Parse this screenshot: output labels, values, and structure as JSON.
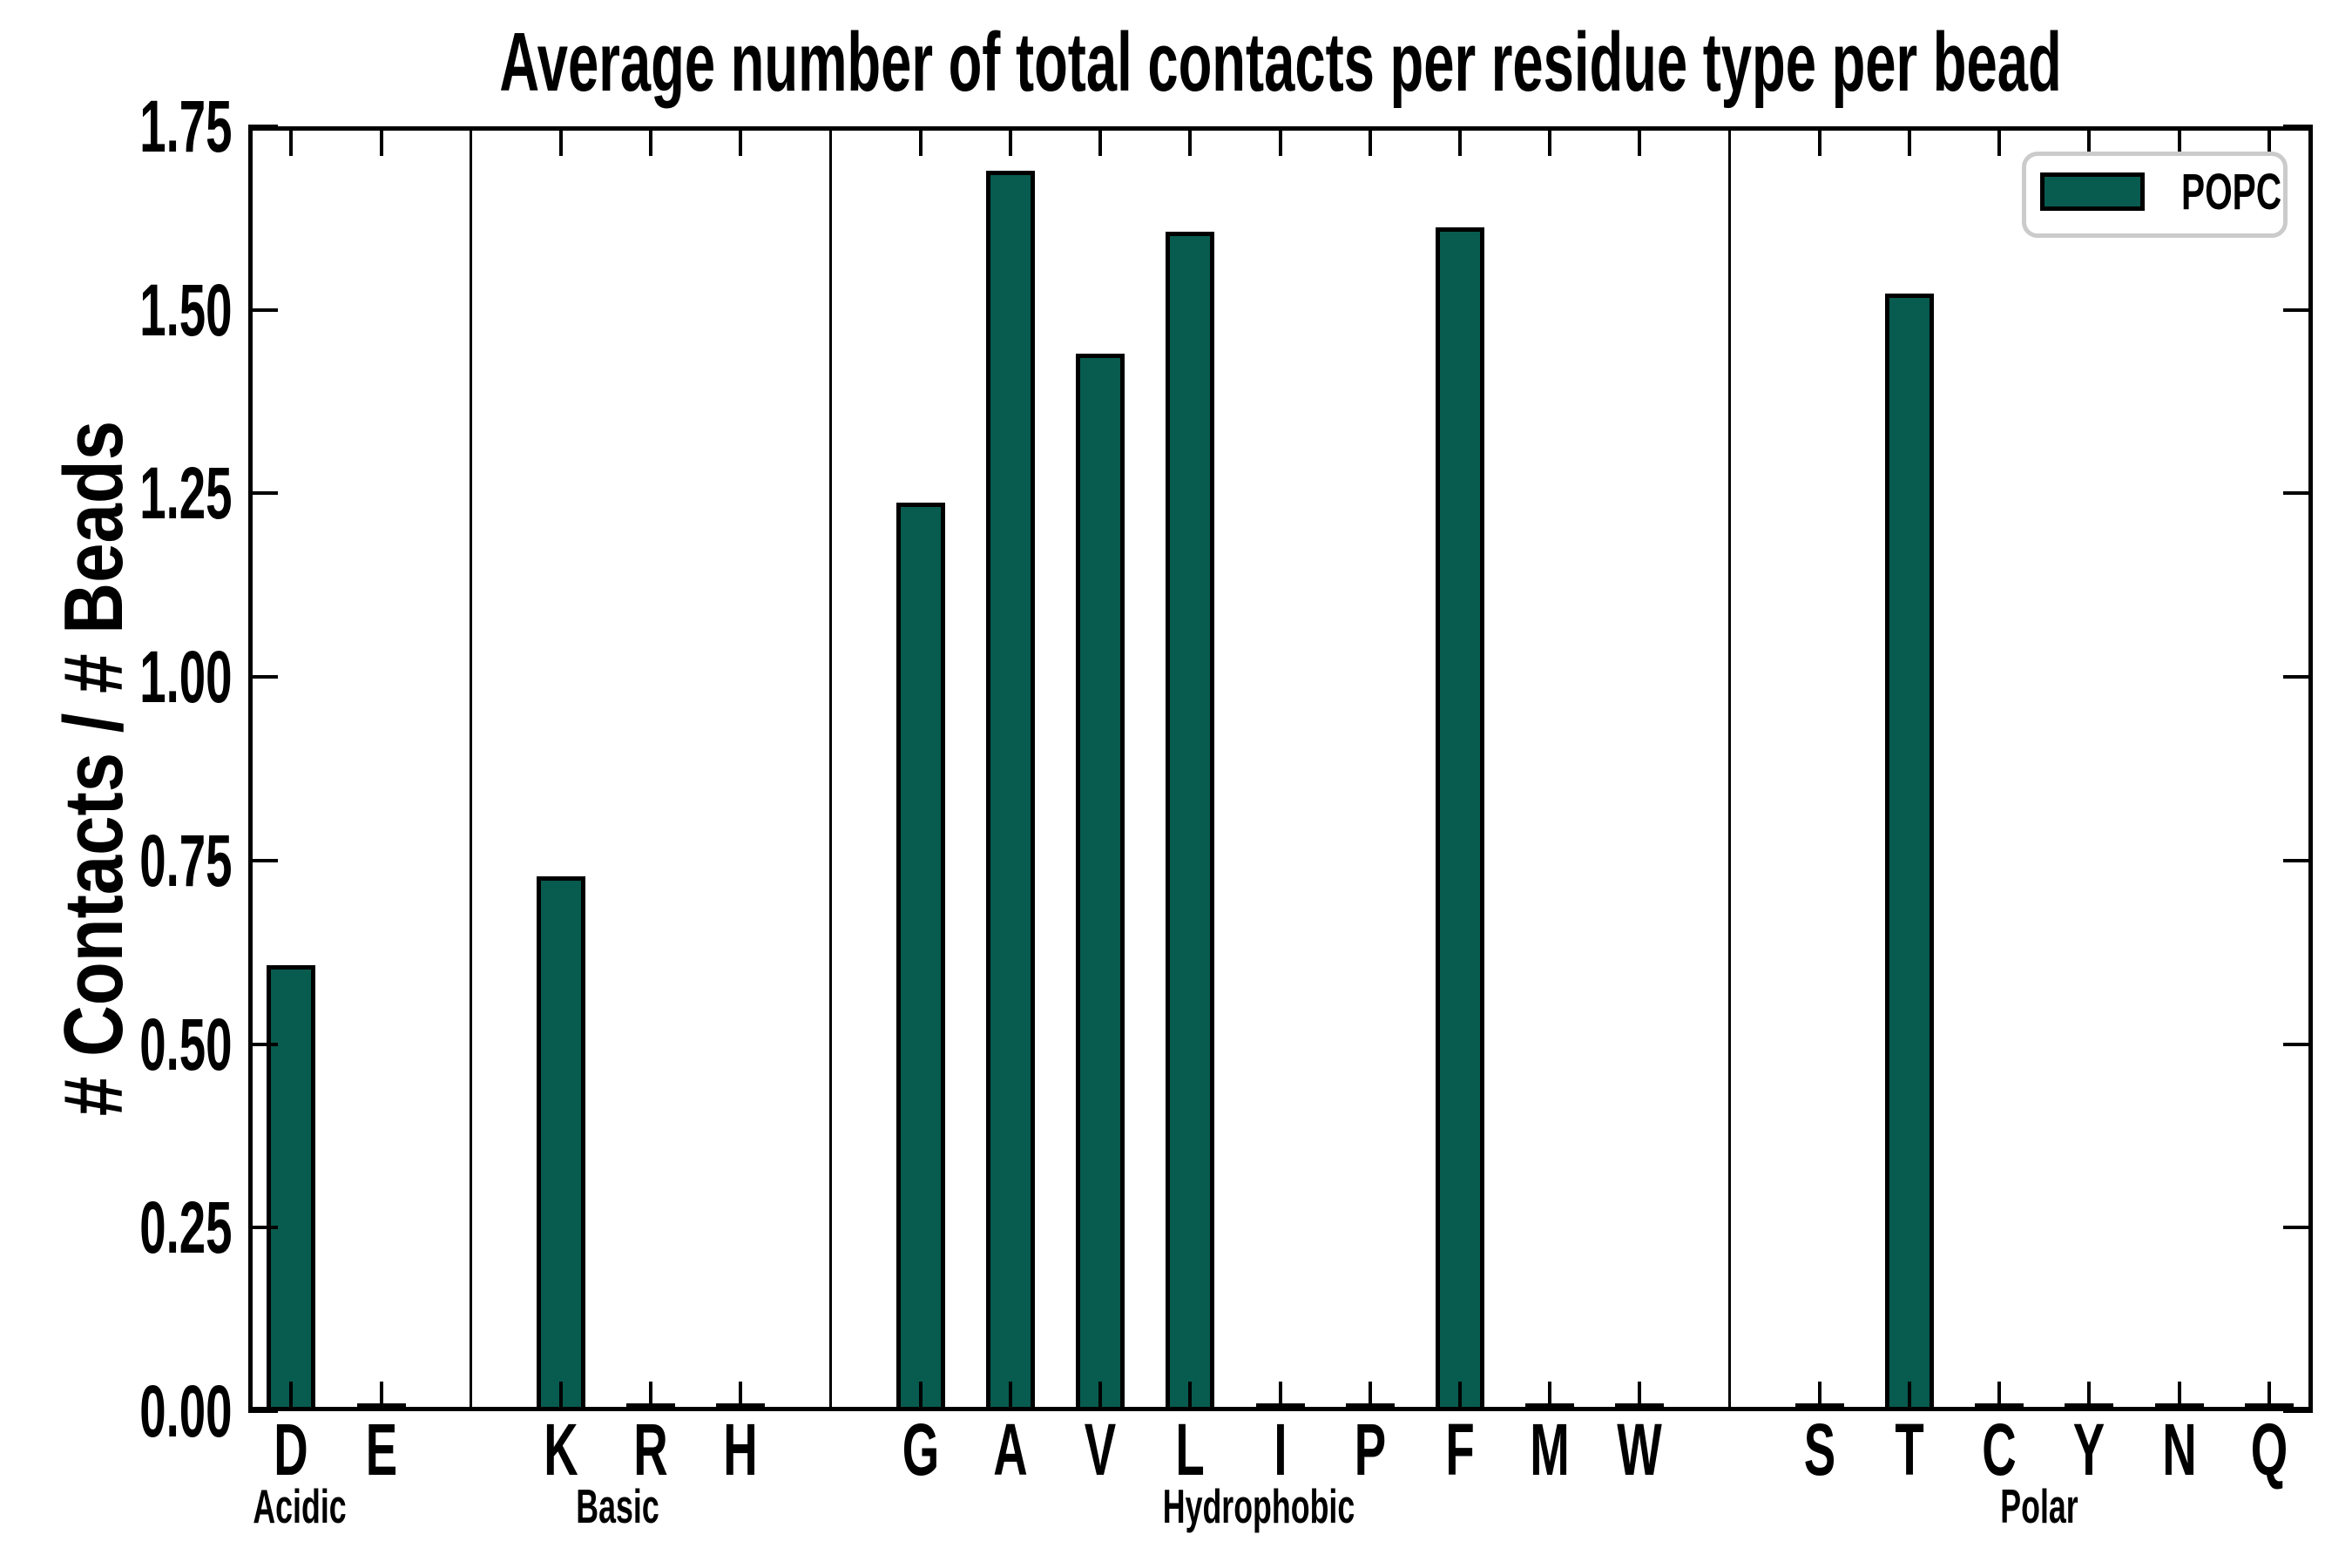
{
  "chart_data": {
    "type": "bar",
    "title": "Average number of total contacts per residue type per bead",
    "ylabel": "# Contacts / # Beads",
    "xlabel": "",
    "ylim": [
      0,
      1.75
    ],
    "ytick_step": 0.25,
    "yticks": [
      "0.00",
      "0.25",
      "0.50",
      "0.75",
      "1.00",
      "1.25",
      "1.50",
      "1.75"
    ],
    "grid": false,
    "bar_color": "#085b4f",
    "bar_edge_color": "#000000",
    "groups": [
      {
        "name": "Acidic",
        "categories": [
          "D",
          "E"
        ],
        "values": [
          0.607,
          0
        ]
      },
      {
        "name": "Basic",
        "categories": [
          "K",
          "R",
          "H"
        ],
        "values": [
          0.729,
          0,
          0
        ]
      },
      {
        "name": "Hydrophobic",
        "categories": [
          "G",
          "A",
          "V",
          "L",
          "I",
          "P",
          "F",
          "M",
          "W"
        ],
        "values": [
          1.238,
          1.689,
          1.44,
          1.606,
          0,
          0,
          1.612,
          0,
          0
        ]
      },
      {
        "name": "Polar",
        "categories": [
          "S",
          "T",
          "C",
          "Y",
          "N",
          "Q"
        ],
        "values": [
          0,
          1.522,
          0,
          0,
          0,
          0
        ]
      }
    ],
    "legend": {
      "position": "upper right",
      "border_color": "#cbcbcb",
      "entries": [
        {
          "label": "POPC",
          "color": "#085b4f"
        }
      ]
    }
  }
}
